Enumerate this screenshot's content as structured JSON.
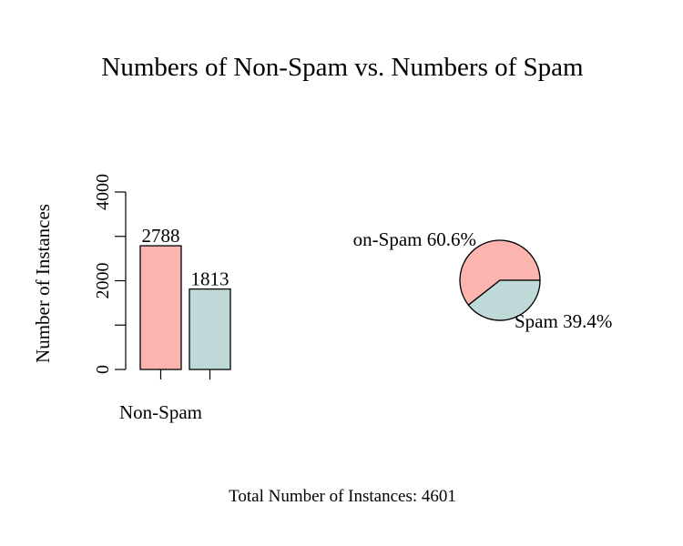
{
  "title": "Numbers of Non-Spam vs. Numbers of Spam",
  "footer": "Total Number of Instances: 4601",
  "colors": {
    "non_spam": "#FBB4AE",
    "spam": "#BFD9D9",
    "stroke": "#000000"
  },
  "chart_data": [
    {
      "type": "bar",
      "categories": [
        "Non-Spam",
        "Spam"
      ],
      "values": [
        2788,
        1813
      ],
      "data_labels": [
        "2788",
        "1813"
      ],
      "visible_category_labels": [
        "Non-Spam"
      ],
      "ylabel": "Number of Instances",
      "ylim": [
        0,
        4000
      ],
      "yticks": [
        0,
        1000,
        2000,
        3000,
        4000
      ],
      "ytick_labels": [
        "0",
        "",
        "2000",
        "",
        "4000"
      ],
      "grid": false
    },
    {
      "type": "pie",
      "slices": [
        {
          "name": "Non-Spam",
          "percent": 60.6,
          "label": "Non-Spam 60.6%",
          "visible_label": "on-Spam 60.6%"
        },
        {
          "name": "Spam",
          "percent": 39.4,
          "label": "Spam 39.4%",
          "visible_label": "Spam 39.4%"
        }
      ]
    }
  ]
}
